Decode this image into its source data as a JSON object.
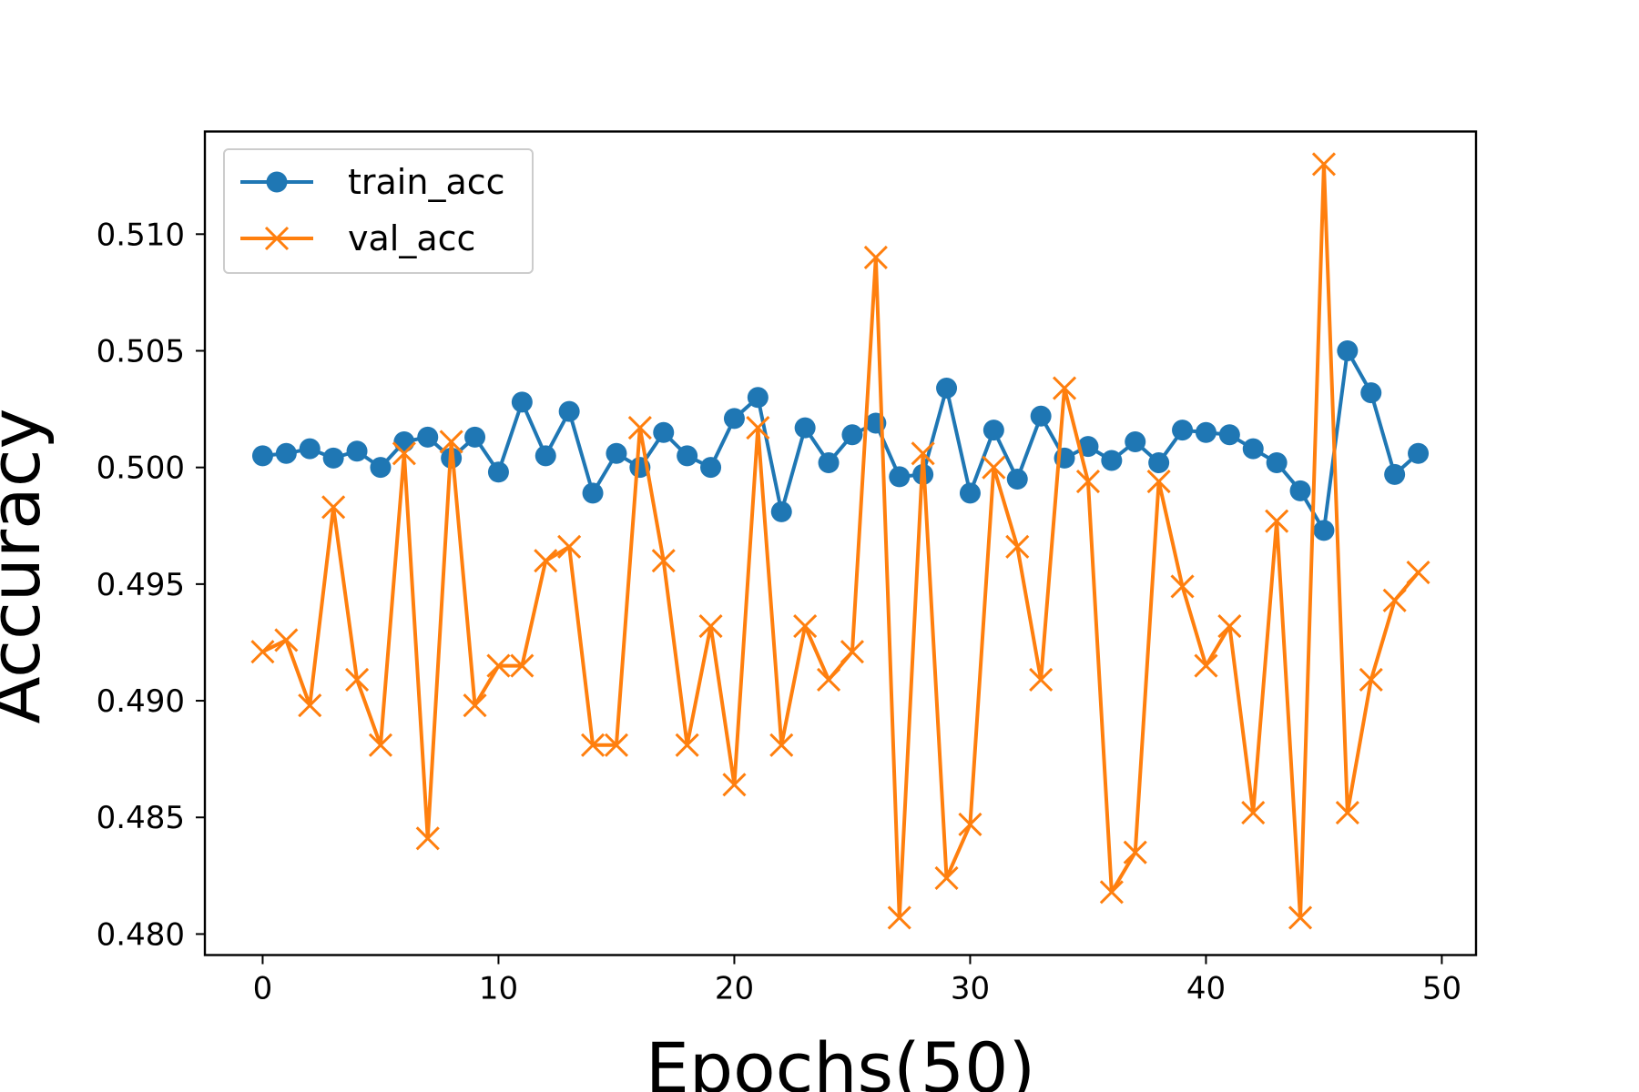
{
  "chart_data": {
    "type": "line",
    "xlabel": "Epochs(50)",
    "ylabel": "Accuracy",
    "xlim": [
      -2.45,
      51.45
    ],
    "ylim": [
      0.4791,
      0.5144
    ],
    "xticks": [
      0,
      10,
      20,
      30,
      40,
      50
    ],
    "yticks": [
      0.48,
      0.485,
      0.49,
      0.495,
      0.5,
      0.505,
      0.51
    ],
    "xtick_labels": [
      "0",
      "10",
      "20",
      "30",
      "40",
      "50"
    ],
    "ytick_labels": [
      "0.480",
      "0.485",
      "0.490",
      "0.495",
      "0.500",
      "0.505",
      "0.510"
    ],
    "grid": false,
    "legend_position": "top-left",
    "x": [
      0,
      1,
      2,
      3,
      4,
      5,
      6,
      7,
      8,
      9,
      10,
      11,
      12,
      13,
      14,
      15,
      16,
      17,
      18,
      19,
      20,
      21,
      22,
      23,
      24,
      25,
      26,
      27,
      28,
      29,
      30,
      31,
      32,
      33,
      34,
      35,
      36,
      37,
      38,
      39,
      40,
      41,
      42,
      43,
      44,
      45,
      46,
      47,
      48,
      49
    ],
    "series": [
      {
        "name": "train_acc",
        "color": "#1f77b4",
        "marker": "circle",
        "values": [
          0.5005,
          0.5006,
          0.5008,
          0.5004,
          0.5007,
          0.5,
          0.5011,
          0.5013,
          0.5004,
          0.5013,
          0.4998,
          0.5028,
          0.5005,
          0.5024,
          0.4989,
          0.5006,
          0.5,
          0.5015,
          0.5005,
          0.5,
          0.5021,
          0.503,
          0.4981,
          0.5017,
          0.5002,
          0.5014,
          0.5019,
          0.4996,
          0.4997,
          0.5034,
          0.4989,
          0.5016,
          0.4995,
          0.5022,
          0.5004,
          0.5009,
          0.5003,
          0.5011,
          0.5002,
          0.5016,
          0.5015,
          0.5014,
          0.5008,
          0.5002,
          0.499,
          0.4973,
          0.505,
          0.5032,
          0.4997,
          0.5006
        ]
      },
      {
        "name": "val_acc",
        "color": "#ff7f0e",
        "marker": "x",
        "values": [
          0.4921,
          0.4926,
          0.4898,
          0.4983,
          0.4909,
          0.4881,
          0.5006,
          0.4841,
          0.5011,
          0.4898,
          0.4915,
          0.4915,
          0.496,
          0.4966,
          0.4881,
          0.4881,
          0.5017,
          0.496,
          0.4881,
          0.4932,
          0.4864,
          0.5017,
          0.4881,
          0.4932,
          0.4909,
          0.4921,
          0.509,
          0.4807,
          0.5006,
          0.4824,
          0.4847,
          0.5,
          0.4966,
          0.4909,
          0.5034,
          0.4994,
          0.4818,
          0.4835,
          0.4994,
          0.4949,
          0.4915,
          0.4932,
          0.4852,
          0.4977,
          0.4807,
          0.513,
          0.4852,
          0.4909,
          0.4943,
          0.4955
        ]
      }
    ]
  }
}
